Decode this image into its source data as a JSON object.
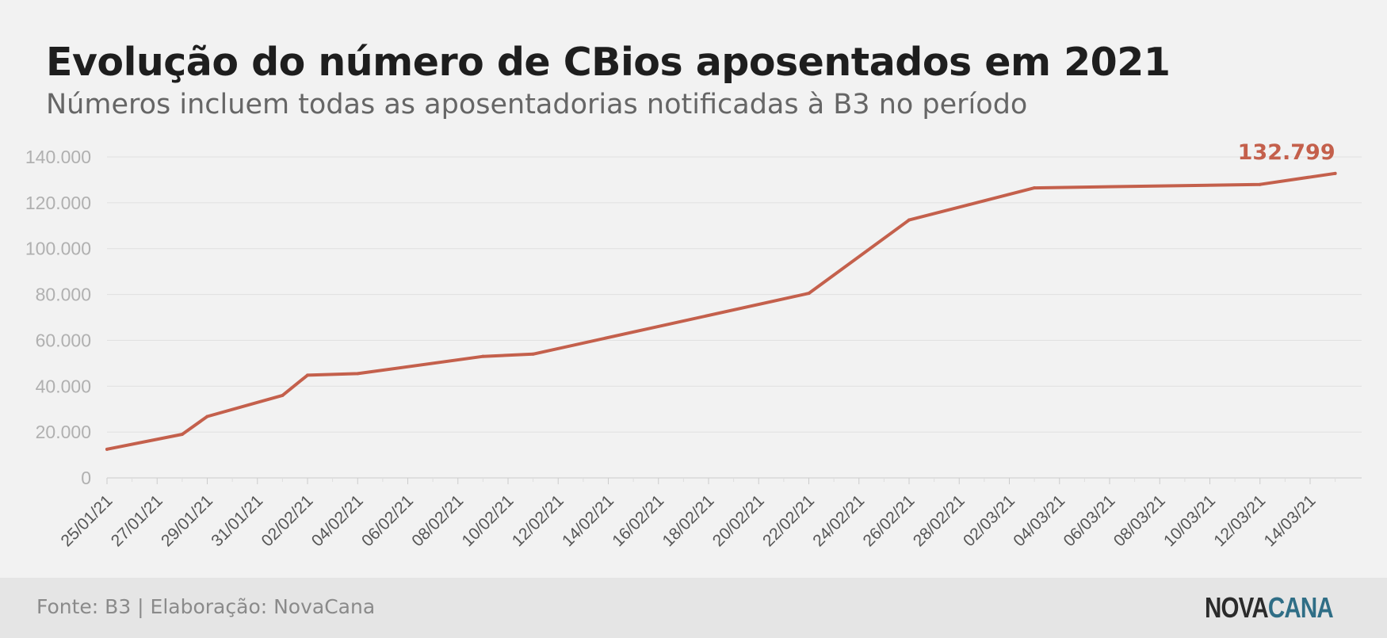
{
  "title": "Evolução do número de CBios aposentados em 2021",
  "subtitle": "Números incluem todas as aposentadorias notificadas à B3 no período",
  "footer": {
    "source": "Fonte: B3 | Elaboração: NovaCana",
    "logo_part1": "NOVA",
    "logo_part2": "CANA"
  },
  "chart_data": {
    "type": "line",
    "title": "Evolução do número de CBios aposentados em 2021",
    "subtitle": "Números incluem todas as aposentadorias notificadas à B3 no período",
    "xlabel": "",
    "ylabel": "",
    "ylim": [
      0,
      140000
    ],
    "yticks": [
      0,
      20000,
      40000,
      60000,
      80000,
      100000,
      120000,
      140000
    ],
    "ytick_labels": [
      "0",
      "20.000",
      "40.000",
      "60.000",
      "80.000",
      "100.000",
      "120.000",
      "140.000"
    ],
    "xlim": [
      "2021-01-25",
      "2021-03-15"
    ],
    "xtick_labels": [
      "25/01/21",
      "27/01/21",
      "29/01/21",
      "31/01/21",
      "02/02/21",
      "04/02/21",
      "06/02/21",
      "08/02/21",
      "10/02/21",
      "12/02/21",
      "14/02/21",
      "16/02/21",
      "18/02/21",
      "20/02/21",
      "22/02/21",
      "24/02/21",
      "26/02/21",
      "28/02/21",
      "02/03/21",
      "04/03/21",
      "06/03/21",
      "08/03/21",
      "10/03/21",
      "12/03/21",
      "14/03/21"
    ],
    "grid": true,
    "color": "#c4604c",
    "series": [
      {
        "x": [
          "2021-01-25",
          "2021-01-28",
          "2021-01-29",
          "2021-02-01",
          "2021-02-02",
          "2021-02-04",
          "2021-02-09",
          "2021-02-11",
          "2021-02-22",
          "2021-02-26",
          "2021-03-03",
          "2021-03-12",
          "2021-03-15"
        ],
        "values": [
          12500,
          19000,
          26800,
          36000,
          44800,
          45500,
          53000,
          54000,
          80500,
          112500,
          126500,
          128000,
          132799
        ]
      }
    ],
    "annotations": [
      {
        "x": "2021-03-15",
        "y": 132799,
        "text": "132.799"
      }
    ]
  }
}
